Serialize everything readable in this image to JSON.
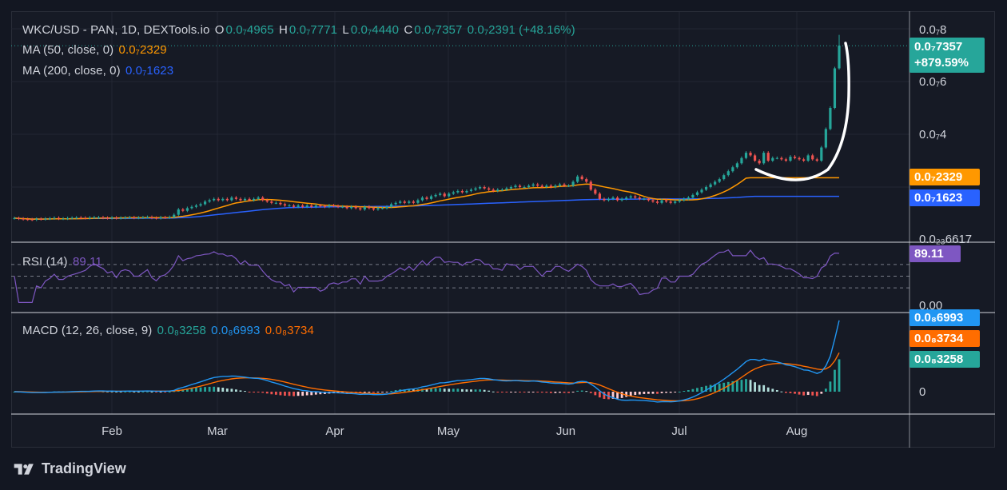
{
  "header": {
    "symbol": "WKC/USD - PAN, 1D, DEXTools.io",
    "o_label": "O",
    "o_value": "0.0₇4965",
    "h_label": "H",
    "h_value": "0.0₇7771",
    "l_label": "L",
    "l_value": "0.0₇4440",
    "c_label": "C",
    "c_value": "0.0₇7357",
    "change": "0.0₇2391 (+48.16%)"
  },
  "ma50": {
    "label": "MA (50, close, 0)",
    "value": "0.0₇2329",
    "color": "#ff9800"
  },
  "ma200": {
    "label": "MA (200, close, 0)",
    "value": "0.0₇1623",
    "color": "#2962ff"
  },
  "price_axis": {
    "labels": [
      "0.0₇8",
      "0.0₇6",
      "0.0₇4",
      "0.0₂₃6617"
    ]
  },
  "price_tags": {
    "last": "0.0₇7357",
    "last_change": "+879.59%",
    "ma50": "0.0₇2329",
    "ma200": "0.0₇1623"
  },
  "rsi": {
    "label": "RSI (14)",
    "value": "89.11",
    "axis_zero": "0.00",
    "color": "#7e57c2"
  },
  "macd": {
    "label": "MACD (12, 26, close, 9)",
    "hist_value": "0.0₈3258",
    "macd_value": "0.0₈6993",
    "signal_value": "0.0₈3734",
    "axis_zero": "0",
    "colors": {
      "macd": "#2196f3",
      "signal": "#ff6d00",
      "hist_up": "#b2dfdb",
      "hist_down": "#ef5350",
      "hist_strong": "#26a69a"
    }
  },
  "x_axis": {
    "labels": [
      "Feb",
      "Mar",
      "Apr",
      "May",
      "Jun",
      "Jul",
      "Aug"
    ]
  },
  "brand": "TradingView",
  "chart_data": {
    "type": "candlestick",
    "unit": "x1e-7 USD",
    "x_range": [
      "mid Jan",
      "mid Aug"
    ],
    "ylim": [
      0,
      8
    ],
    "y_ticks": [
      8,
      6,
      4
    ],
    "months": [
      "Feb",
      "Mar",
      "Apr",
      "May",
      "Jun",
      "Jul",
      "Aug"
    ],
    "close_series_approx": [
      0.82,
      0.8,
      0.78,
      0.77,
      0.76,
      0.79,
      0.78,
      0.8,
      0.81,
      0.83,
      0.8,
      0.8,
      0.82,
      0.83,
      0.84,
      0.83,
      0.82,
      0.84,
      0.85,
      0.85,
      0.83,
      0.82,
      0.84,
      0.82,
      0.83,
      0.84,
      0.85,
      0.83,
      0.84,
      0.85,
      0.86,
      0.83,
      0.82,
      0.85,
      0.84,
      0.86,
      0.95,
      1.15,
      1.1,
      1.2,
      1.25,
      1.3,
      1.35,
      1.45,
      1.5,
      1.55,
      1.5,
      1.55,
      1.5,
      1.6,
      1.55,
      1.5,
      1.55,
      1.5,
      1.55,
      1.6,
      1.5,
      1.45,
      1.4,
      1.4,
      1.35,
      1.3,
      1.3,
      1.25,
      1.3,
      1.25,
      1.3,
      1.25,
      1.3,
      1.28,
      1.25,
      1.3,
      1.28,
      1.25,
      1.25,
      1.2,
      1.25,
      1.2,
      1.15,
      1.25,
      1.2,
      1.15,
      1.2,
      1.2,
      1.25,
      1.35,
      1.4,
      1.45,
      1.4,
      1.45,
      1.4,
      1.5,
      1.6,
      1.55,
      1.65,
      1.7,
      1.75,
      1.65,
      1.75,
      1.8,
      1.85,
      1.8,
      1.85,
      1.9,
      1.95,
      2.0,
      1.95,
      1.9,
      1.85,
      1.9,
      1.9,
      1.95,
      2.0,
      2.05,
      2.0,
      2.0,
      2.05,
      2.1,
      2.05,
      2.0,
      2.05,
      2.0,
      2.05,
      2.1,
      2.05,
      2.05,
      2.2,
      2.4,
      2.3,
      2.2,
      1.9,
      1.75,
      1.55,
      1.5,
      1.55,
      1.6,
      1.5,
      1.55,
      1.6,
      1.65,
      1.6,
      1.55,
      1.55,
      1.5,
      1.45,
      1.4,
      1.5,
      1.45,
      1.4,
      1.45,
      1.5,
      1.55,
      1.6,
      1.7,
      1.8,
      1.9,
      2.0,
      2.1,
      2.2,
      2.3,
      2.45,
      2.6,
      2.75,
      2.9,
      3.1,
      3.3,
      3.2,
      3.0,
      2.9,
      3.3,
      3.0,
      3.1,
      3.1,
      3.05,
      3.0,
      3.15,
      3.1,
      3.05,
      3.0,
      3.2,
      3.05,
      3.0,
      3.5,
      4.2,
      5.0,
      6.5,
      7.36
    ],
    "ma50_value": 2.329,
    "ma200_value": 1.623,
    "last_close": 7.357,
    "last_change_pct": 879.59,
    "rsi_last": 89.11,
    "rsi_levels": [
      70,
      50,
      30
    ],
    "macd_last": {
      "macd": 6.993,
      "signal": 3.734,
      "hist": 3.258,
      "unit": "x1e-8"
    }
  }
}
